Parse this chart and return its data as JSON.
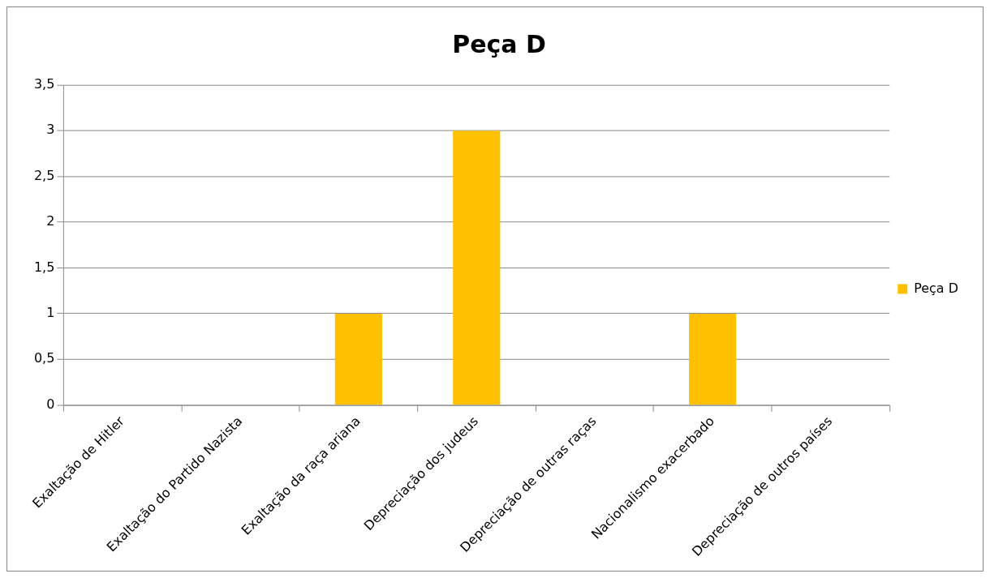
{
  "chart_data": {
    "type": "bar",
    "title": "Peça D",
    "categories": [
      "Exaltação de Hitler",
      "Exaltação do Partido Nazista",
      "Exaltação da raça ariana",
      "Depreciação dos judeus",
      "Depreciação de outras raças",
      "Nacionalismo exacerbado",
      "Depreciação de outros países"
    ],
    "series": [
      {
        "name": "Peça D",
        "color": "#ffc000",
        "values": [
          0,
          0,
          1,
          3,
          0,
          1,
          0
        ]
      }
    ],
    "ylim": [
      0,
      3.5
    ],
    "yticks": [
      0,
      {
        "value": 0.5,
        "label": "0,5"
      },
      1,
      {
        "value": 1.5,
        "label": "1,5"
      },
      2,
      {
        "value": 2.5,
        "label": "2,5"
      },
      3,
      {
        "value": 3.5,
        "label": "3,5"
      }
    ],
    "grid": "y",
    "legend": "right"
  }
}
